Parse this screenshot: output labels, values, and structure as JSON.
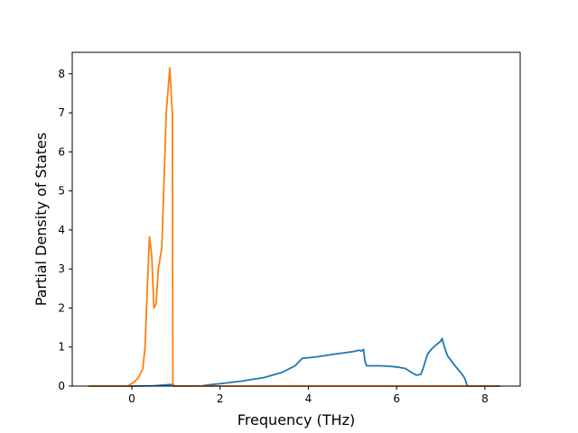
{
  "chart_data": {
    "type": "line",
    "xlabel": "Frequency (THz)",
    "ylabel": "Partial Density of States",
    "xlim": [
      -1.35,
      8.8
    ],
    "ylim": [
      0,
      8.55
    ],
    "xticks": [
      0,
      2,
      4,
      6,
      8
    ],
    "yticks": [
      0,
      1,
      2,
      3,
      4,
      5,
      6,
      7,
      8
    ],
    "grid": false,
    "series": [
      {
        "color": "#1f77b4",
        "x": [
          -0.98,
          0.0,
          0.5,
          0.88,
          0.95,
          0.96,
          1.6,
          1.8,
          2.0,
          2.5,
          3.0,
          3.4,
          3.7,
          3.82,
          3.86,
          4.2,
          4.6,
          5.0,
          5.15,
          5.2,
          5.25,
          5.28,
          5.32,
          5.4,
          5.6,
          5.8,
          6.0,
          6.2,
          6.35,
          6.45,
          6.55,
          6.6,
          6.7,
          6.8,
          6.9,
          7.0,
          7.03,
          7.07,
          7.15,
          7.3,
          7.45,
          7.5,
          7.55,
          7.6,
          8.35
        ],
        "y": [
          0,
          0,
          0.01,
          0.04,
          0.03,
          0,
          0.01,
          0.04,
          0.06,
          0.13,
          0.22,
          0.35,
          0.52,
          0.66,
          0.71,
          0.75,
          0.82,
          0.88,
          0.92,
          0.9,
          0.94,
          0.65,
          0.52,
          0.52,
          0.52,
          0.51,
          0.49,
          0.45,
          0.34,
          0.28,
          0.3,
          0.45,
          0.82,
          0.96,
          1.06,
          1.15,
          1.22,
          1.05,
          0.78,
          0.55,
          0.35,
          0.28,
          0.18,
          0,
          0
        ]
      },
      {
        "color": "#ff7f0e",
        "x": [
          -0.98,
          -0.1,
          0.05,
          0.15,
          0.25,
          0.3,
          0.35,
          0.4,
          0.45,
          0.5,
          0.55,
          0.6,
          0.68,
          0.78,
          0.86,
          0.9,
          0.92,
          0.93,
          8.35
        ],
        "y": [
          0,
          0,
          0.1,
          0.22,
          0.45,
          1.0,
          2.5,
          3.82,
          3.35,
          2.0,
          2.1,
          3.0,
          3.55,
          7.0,
          8.15,
          7.3,
          7.0,
          0,
          0
        ]
      }
    ]
  }
}
